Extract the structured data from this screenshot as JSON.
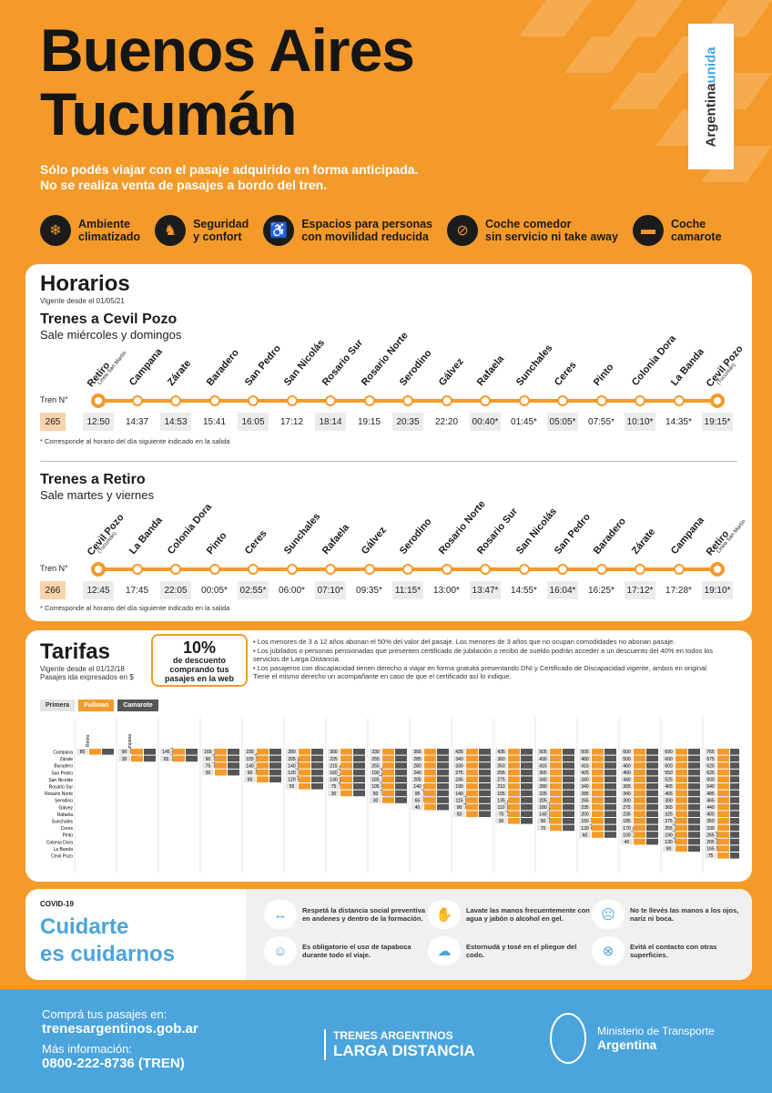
{
  "header": {
    "title_line1": "Buenos Aires",
    "title_line2": "Tucumán",
    "notice_line1": "Sólo podés viajar con el pasaje adquirido en forma anticipada.",
    "notice_line2": "No se realiza venta de pasajes a bordo del tren.",
    "brand_a": "Argentina",
    "brand_b": "unida"
  },
  "features": [
    {
      "icon": "snowflake-icon",
      "glyph": "❄",
      "l1": "Ambiente",
      "l2": "climatizado"
    },
    {
      "icon": "seat-icon",
      "glyph": "♞",
      "l1": "Seguridad",
      "l2": "y confort"
    },
    {
      "icon": "wheelchair-icon",
      "glyph": "♿",
      "l1": "Espacios para personas",
      "l2": "con movilidad reducida"
    },
    {
      "icon": "no-food-icon",
      "glyph": "⊘",
      "l1": "Coche comedor",
      "l2": "sin servicio ni take away"
    },
    {
      "icon": "bed-icon",
      "glyph": "▬",
      "l1": "Coche",
      "l2": "camarote"
    }
  ],
  "horarios": {
    "title": "Horarios",
    "valid": "Vigente desde el 01/05/21",
    "train_label": "Tren N°",
    "outbound": {
      "title": "Trenes a Cevil Pozo",
      "days": "Sale miércoles y domingos",
      "train": "265",
      "stations": [
        {
          "n": "Retiro",
          "s": "Línea San Martín"
        },
        {
          "n": "Campana",
          "s": ""
        },
        {
          "n": "Zárate",
          "s": ""
        },
        {
          "n": "Baradero",
          "s": ""
        },
        {
          "n": "San Pedro",
          "s": ""
        },
        {
          "n": "San Nicolás",
          "s": ""
        },
        {
          "n": "Rosario Sur",
          "s": ""
        },
        {
          "n": "Rosario Norte",
          "s": ""
        },
        {
          "n": "Serodino",
          "s": ""
        },
        {
          "n": "Gálvez",
          "s": ""
        },
        {
          "n": "Rafaela",
          "s": ""
        },
        {
          "n": "Sunchales",
          "s": ""
        },
        {
          "n": "Ceres",
          "s": ""
        },
        {
          "n": "Pinto",
          "s": ""
        },
        {
          "n": "Colonia Dora",
          "s": ""
        },
        {
          "n": "La Banda",
          "s": ""
        },
        {
          "n": "Cevil Pozo",
          "s": "(Tucumán)"
        }
      ],
      "times": [
        "12:50",
        "14:37",
        "14:53",
        "15:41",
        "16:05",
        "17:12",
        "18:14",
        "19:15",
        "20:35",
        "22:20",
        "00:40*",
        "01:45*",
        "05:05*",
        "07:55*",
        "10:10*",
        "14:35*",
        "19:15*"
      ],
      "note": "* Corresponde al horario del día siguiente indicado en la salida"
    },
    "inbound": {
      "title": "Trenes a Retiro",
      "days": "Sale martes y viernes",
      "train": "266",
      "stations": [
        {
          "n": "Cevil Pozo",
          "s": "(Tucumán)"
        },
        {
          "n": "La Banda",
          "s": ""
        },
        {
          "n": "Colonia Dora",
          "s": ""
        },
        {
          "n": "Pinto",
          "s": ""
        },
        {
          "n": "Ceres",
          "s": ""
        },
        {
          "n": "Sunchales",
          "s": ""
        },
        {
          "n": "Rafaela",
          "s": ""
        },
        {
          "n": "Gálvez",
          "s": ""
        },
        {
          "n": "Serodino",
          "s": ""
        },
        {
          "n": "Rosario Norte",
          "s": ""
        },
        {
          "n": "Rosario Sur",
          "s": ""
        },
        {
          "n": "San Nicolás",
          "s": ""
        },
        {
          "n": "San Pedro",
          "s": ""
        },
        {
          "n": "Baradero",
          "s": ""
        },
        {
          "n": "Zárate",
          "s": ""
        },
        {
          "n": "Campana",
          "s": ""
        },
        {
          "n": "Retiro",
          "s": "Línea San Martín"
        }
      ],
      "times": [
        "12:45",
        "17:45",
        "22:05",
        "00:05*",
        "02:55*",
        "06:00*",
        "07:10*",
        "09:35*",
        "11:15*",
        "13:00*",
        "13:47*",
        "14:55*",
        "16:04*",
        "16:25*",
        "17:12*",
        "17:28*",
        "19:10*"
      ],
      "note": "* Corresponde al horario del día siguiente indicado en la salida"
    }
  },
  "tarifas": {
    "title": "Tarifas",
    "valid": "Vigente desde el 01/12/18",
    "unit": "Pasajes ida expresados en $",
    "discount_pct": "10%",
    "discount_l1": "de descuento",
    "discount_l2": "comprando tus",
    "discount_l3": "pasajes en la web",
    "rules": [
      "• Los menores de 3 a 12 años abonan el 50% del valor del pasaje. Los menores de 3 años que no ocupan comodidades no abonan pasaje.",
      "• Los jubilados o personas pensionadas que presenten certificado de jubilación o recibo de sueldo podrán acceder a un descuento del 40% en todos los servicios de Larga Distancia.",
      "• Los pasajeros con discapacidad tienen derecho a viajar en forma gratuita presentando DNI y Certificado de Discapacidad vigente, ambos en original. Tiene el mismo derecho un acompañante en caso de que el certificado así lo indique."
    ],
    "legend": [
      {
        "label": "Primera",
        "color": "#e5e5e5",
        "text": "#333"
      },
      {
        "label": "Pullman",
        "color": "#f39a2b",
        "text": "#fff"
      },
      {
        "label": "Camarote",
        "color": "#555555",
        "text": "#fff"
      }
    ],
    "cols": [
      "Retiro",
      "Campana",
      "Zárate",
      "Baradero",
      "San Pedro",
      "San Nicolás",
      "Rosario Sur",
      "Rosario Norte",
      "Serodino",
      "Gálvez",
      "Rafaela",
      "Sunchales",
      "Ceres",
      "Pinto",
      "Colonia Dora",
      "La Banda"
    ],
    "rows": [
      "Campana",
      "Zárate",
      "Baradero",
      "San Pedro",
      "San Nicolás",
      "Rosario Sur",
      "Rosario Norte",
      "Serodino",
      "Gálvez",
      "Rafaela",
      "Sunchales",
      "Ceres",
      "Pinto",
      "Colonia Dora",
      "La Banda",
      "Cevil Pozo"
    ],
    "primera": [
      [
        80,
        90,
        145,
        165,
        230,
        280,
        300,
        330,
        365,
        435,
        435,
        505,
        505,
        600,
        690,
        765
      ],
      [
        null,
        30,
        65,
        90,
        155,
        205,
        225,
        255,
        285,
        340,
        360,
        430,
        480,
        500,
        600,
        675
      ],
      [
        null,
        null,
        null,
        75,
        140,
        140,
        215,
        255,
        280,
        330,
        350,
        415,
        415,
        460,
        600,
        625
      ],
      [
        null,
        null,
        null,
        30,
        90,
        120,
        160,
        190,
        240,
        275,
        295,
        365,
        425,
        460,
        550,
        625
      ],
      [
        null,
        null,
        null,
        null,
        65,
        120,
        140,
        165,
        205,
        245,
        275,
        340,
        340,
        440,
        525,
        600
      ],
      [
        null,
        null,
        null,
        null,
        null,
        55,
        75,
        105,
        140,
        190,
        210,
        280,
        340,
        365,
        465,
        540
      ],
      [
        null,
        null,
        null,
        null,
        null,
        null,
        30,
        50,
        95,
        140,
        155,
        225,
        285,
        340,
        465,
        485
      ],
      [
        null,
        null,
        null,
        null,
        null,
        null,
        null,
        30,
        65,
        115,
        135,
        205,
        265,
        300,
        390,
        465
      ],
      [
        null,
        null,
        null,
        null,
        null,
        null,
        null,
        null,
        40,
        90,
        110,
        180,
        235,
        275,
        365,
        440
      ],
      [
        null,
        null,
        null,
        null,
        null,
        null,
        null,
        null,
        null,
        50,
        70,
        140,
        200,
        235,
        325,
        400
      ],
      [
        null,
        null,
        null,
        null,
        null,
        null,
        null,
        null,
        null,
        null,
        30,
        90,
        150,
        185,
        275,
        350
      ],
      [
        null,
        null,
        null,
        null,
        null,
        null,
        null,
        null,
        null,
        null,
        null,
        70,
        130,
        170,
        255,
        330
      ],
      [
        null,
        null,
        null,
        null,
        null,
        null,
        null,
        null,
        null,
        null,
        null,
        null,
        60,
        100,
        190,
        265
      ],
      [
        null,
        null,
        null,
        null,
        null,
        null,
        null,
        null,
        null,
        null,
        null,
        null,
        null,
        40,
        130,
        205
      ],
      [
        null,
        null,
        null,
        null,
        null,
        null,
        null,
        null,
        null,
        null,
        null,
        null,
        null,
        null,
        90,
        165
      ],
      [
        null,
        null,
        null,
        null,
        null,
        null,
        null,
        null,
        null,
        null,
        null,
        null,
        null,
        null,
        null,
        75
      ]
    ]
  },
  "covid": {
    "tag": "COVID-19",
    "title_l1": "Cuidarte",
    "title_l2": "es cuidarnos",
    "tips": [
      {
        "icon": "distance-icon",
        "glyph": "↔",
        "text": "Respetá la distancia social preventiva en andenes y dentro de la formación."
      },
      {
        "icon": "handwash-icon",
        "glyph": "✋",
        "text": "Lavate las manos frecuentemente con agua y jabón o alcohol en gel."
      },
      {
        "icon": "no-touch-face-icon",
        "glyph": "☹",
        "text": "No te llevés las manos a los ojos, nariz ni boca."
      },
      {
        "icon": "mask-icon",
        "glyph": "☺",
        "text": "Es obligatorio el uso de tapaboca durante todo el viaje."
      },
      {
        "icon": "sneeze-elbow-icon",
        "glyph": "☁",
        "text": "Estornudá y tosé en el pliegue del codo."
      },
      {
        "icon": "no-contact-icon",
        "glyph": "⊗",
        "text": "Evitá el contacto con otras superficies."
      }
    ]
  },
  "footer": {
    "buy_l1": "Comprá tus pasajes en:",
    "buy_url": "trenesargentinos.gob.ar",
    "info_l1": "Más información:",
    "phone": "0800-222-8736 (TREN)",
    "brand_a": "TRENES ARGENTINOS",
    "brand_b": "LARGA DISTANCIA",
    "min_a": "Ministerio de Transporte",
    "min_b": "Argentina"
  }
}
